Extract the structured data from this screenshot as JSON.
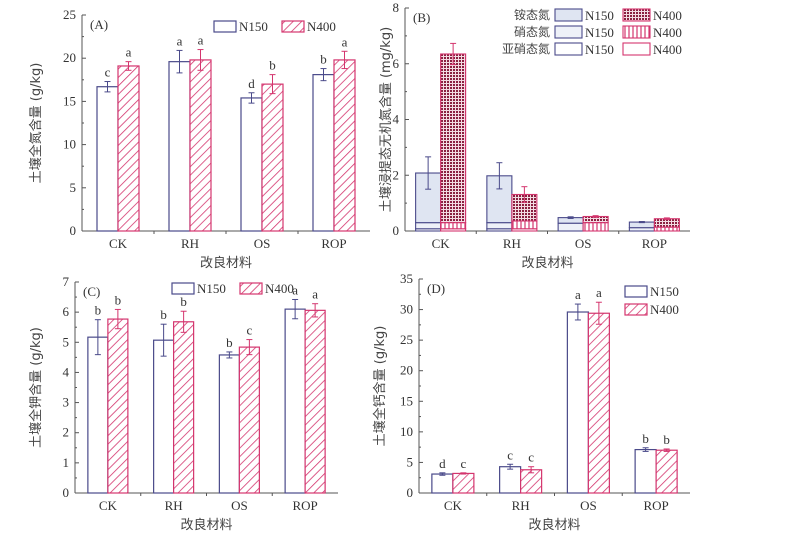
{
  "colors": {
    "n150": "#4a4a8a",
    "n400": "#d4356e",
    "ammonium150_fill": "#dfe5f2",
    "nitrate150_fill": "#eef1f8",
    "ammonium400_fill": "#8a2040"
  },
  "chart_data": [
    {
      "id": "A",
      "type": "bar",
      "panel_label": "(A)",
      "categories": [
        "CK",
        "RH",
        "OS",
        "ROP"
      ],
      "series": [
        {
          "name": "N150",
          "values": [
            16.7,
            19.6,
            15.4,
            18.1
          ],
          "errors": [
            0.6,
            1.3,
            0.6,
            0.7
          ],
          "letters": [
            "c",
            "a",
            "d",
            "b"
          ]
        },
        {
          "name": "N400",
          "values": [
            19.1,
            19.8,
            17.0,
            19.8
          ],
          "errors": [
            0.5,
            1.2,
            1.1,
            1.0
          ],
          "letters": [
            "a",
            "a",
            "b",
            "a"
          ]
        }
      ],
      "xlabel": "改良材料",
      "ylabel": "土壤全氮含量 (g/kg)",
      "ylim": [
        0,
        25
      ],
      "yticks": [
        0,
        5,
        10,
        15,
        20,
        25
      ],
      "legend": "top-right"
    },
    {
      "id": "B",
      "type": "stacked-bar",
      "panel_label": "(B)",
      "categories": [
        "CK",
        "RH",
        "OS",
        "ROP"
      ],
      "components": [
        "亚硝态氮",
        "硝态氮",
        "铵态氮"
      ],
      "series": [
        {
          "name": "N150",
          "nitrite": [
            0.08,
            0.08,
            0.0,
            0.0
          ],
          "nitrate": [
            0.22,
            0.22,
            0.28,
            0.12
          ],
          "ammonium": [
            1.78,
            1.68,
            0.2,
            0.2
          ],
          "total": [
            2.08,
            1.98,
            0.48,
            0.32
          ],
          "total_error": [
            0.58,
            0.47,
            0.03,
            0.02
          ]
        },
        {
          "name": "N400",
          "nitrite": [
            0.08,
            0.08,
            0.0,
            0.0
          ],
          "nitrate": [
            0.22,
            0.28,
            0.3,
            0.14
          ],
          "ammonium": [
            6.05,
            0.95,
            0.22,
            0.3
          ],
          "total": [
            6.35,
            1.31,
            0.52,
            0.44
          ],
          "total_error": [
            0.38,
            0.28,
            0.03,
            0.03
          ]
        }
      ],
      "legend_rows": [
        {
          "label": "铵态氮",
          "n150": "N150",
          "n400": "N400"
        },
        {
          "label": "硝态氮",
          "n150": "N150",
          "n400": "N400"
        },
        {
          "label": "亚硝态氮",
          "n150": "N150",
          "n400": "N400"
        }
      ],
      "xlabel": "改良材料",
      "ylabel": "土壤浸提态无机氮含量 (mg/kg)",
      "ylim": [
        0,
        8
      ],
      "yticks": [
        0,
        2,
        4,
        6,
        8
      ],
      "legend": "top-right"
    },
    {
      "id": "C",
      "type": "bar",
      "panel_label": "(C)",
      "categories": [
        "CK",
        "RH",
        "OS",
        "ROP"
      ],
      "series": [
        {
          "name": "N150",
          "values": [
            5.17,
            5.07,
            4.58,
            6.1
          ],
          "errors": [
            0.58,
            0.53,
            0.1,
            0.32
          ],
          "letters": [
            "b",
            "b",
            "b",
            "a"
          ]
        },
        {
          "name": "N400",
          "values": [
            5.77,
            5.68,
            4.84,
            6.06
          ],
          "errors": [
            0.32,
            0.35,
            0.25,
            0.22
          ],
          "letters": [
            "b",
            "b",
            "c",
            "a"
          ]
        }
      ],
      "xlabel": "改良材料",
      "ylabel": "土壤全钾含量 (g/kg)",
      "ylim": [
        0,
        7
      ],
      "yticks": [
        0,
        1,
        2,
        3,
        4,
        5,
        6,
        7
      ],
      "legend": "top-center"
    },
    {
      "id": "D",
      "type": "bar",
      "panel_label": "(D)",
      "categories": [
        "CK",
        "RH",
        "OS",
        "ROP"
      ],
      "series": [
        {
          "name": "N150",
          "values": [
            3.1,
            4.3,
            29.6,
            7.1
          ],
          "errors": [
            0.2,
            0.4,
            1.3,
            0.3
          ],
          "letters": [
            "d",
            "c",
            "a",
            "b"
          ]
        },
        {
          "name": "N400",
          "values": [
            3.2,
            3.8,
            29.4,
            7.0
          ],
          "errors": [
            0.1,
            0.5,
            1.8,
            0.2
          ],
          "letters": [
            "c",
            "c",
            "a",
            "b"
          ]
        }
      ],
      "xlabel": "改良材料",
      "ylabel": "土壤全钙含量 (g/kg)",
      "ylim": [
        0,
        35
      ],
      "yticks": [
        0,
        5,
        10,
        15,
        20,
        25,
        30,
        35
      ],
      "legend": "top-right"
    }
  ]
}
